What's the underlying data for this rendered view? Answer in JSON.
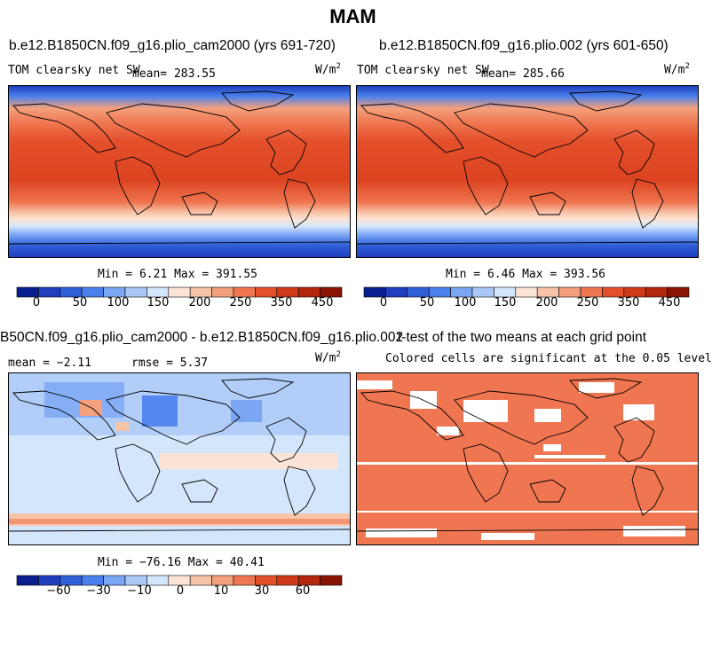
{
  "page_title": "MAM",
  "panels": {
    "p1": {
      "title": "b.e12.B1850CN.f09_g16.plio_cam2000 (yrs 691-720)",
      "variable": "TOM clearsky net SW",
      "mean_text": "mean= 283.55",
      "units": "W/m",
      "units_exp": "2",
      "minmax_text": "Min =   6.21 Max = 391.55"
    },
    "p2": {
      "title": "b.e12.B1850CN.f09_g16.plio.002 (yrs 601-650)",
      "variable": "TOM clearsky net SW",
      "mean_text": "mean= 285.66",
      "units": "W/m",
      "units_exp": "2",
      "minmax_text": "Min =   6.46 Max = 393.56"
    },
    "p3": {
      "title": "B50CN.f09_g16.plio_cam2000 - b.e12.B1850CN.f09_g16.plio.002",
      "mean_text": "mean =  −2.11",
      "rmse_text": "rmse =   5.37",
      "units": "W/m",
      "units_exp": "2",
      "minmax_text": "Min = −76.16 Max =  40.41"
    },
    "p4": {
      "title": "t-test of the two means at each grid point",
      "subtitle": "Colored cells are significant at the 0.05 level"
    }
  },
  "colorbars": {
    "abs": {
      "colors": [
        "#0a1f8f",
        "#1f3fbf",
        "#3060d8",
        "#4a80ec",
        "#7aa6f4",
        "#a9c8f8",
        "#d4e6fb",
        "#fbe4d6",
        "#f8c4a8",
        "#f4a07c",
        "#ef7650",
        "#e4502b",
        "#cf3a18",
        "#b3270e",
        "#8a1403"
      ],
      "tick_labels": [
        "0",
        "50",
        "100",
        "150",
        "200",
        "250",
        "350",
        "450"
      ]
    },
    "diff": {
      "colors": [
        "#0a1f8f",
        "#1f3fbf",
        "#3060d8",
        "#4a80ec",
        "#7aa6f4",
        "#a9c8f8",
        "#d4e6fb",
        "#fbe4d6",
        "#f8c4a8",
        "#f4a07c",
        "#ef7650",
        "#e4502b",
        "#cf3a18",
        "#b3270e",
        "#8a1403"
      ],
      "tick_labels": [
        "−60",
        "−30",
        "−10",
        "0",
        "10",
        "30",
        "60"
      ]
    }
  },
  "chart_data": [
    {
      "type": "heatmap",
      "title": "b.e12.B1850CN.f09_g16.plio_cam2000 (yrs 691-720)",
      "variable": "TOM clearsky net SW",
      "units": "W/m^2",
      "mean": 283.55,
      "min": 6.21,
      "max": 391.55,
      "colorbar_ticks": [
        0,
        50,
        100,
        150,
        200,
        250,
        350,
        450
      ]
    },
    {
      "type": "heatmap",
      "title": "b.e12.B1850CN.f09_g16.plio.002 (yrs 601-650)",
      "variable": "TOM clearsky net SW",
      "units": "W/m^2",
      "mean": 285.66,
      "min": 6.46,
      "max": 393.56,
      "colorbar_ticks": [
        0,
        50,
        100,
        150,
        200,
        250,
        350,
        450
      ]
    },
    {
      "type": "heatmap",
      "title": "B50CN.f09_g16.plio_cam2000 - b.e12.B1850CN.f09_g16.plio.002",
      "units": "W/m^2",
      "mean": -2.11,
      "rmse": 5.37,
      "min": -76.16,
      "max": 40.41,
      "colorbar_ticks": [
        -60,
        -30,
        -10,
        0,
        10,
        30,
        60
      ]
    },
    {
      "type": "heatmap",
      "title": "t-test of the two means at each grid point",
      "subtitle": "Colored cells are significant at the 0.05 level"
    }
  ]
}
